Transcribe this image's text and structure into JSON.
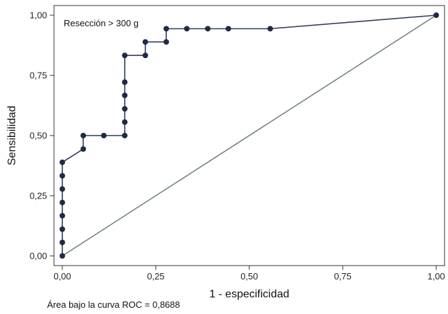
{
  "chart_data": {
    "type": "line",
    "xlabel": "1 - especificidad",
    "ylabel": "Sensibilidad",
    "annotation": "Resección > 300 g",
    "footer": "Área bajo la curva ROC = 0,8688",
    "xlim": [
      0,
      1
    ],
    "ylim": [
      0,
      1
    ],
    "x_ticks": [
      "0,00",
      "0,25",
      "0,50",
      "0,75",
      "1,00"
    ],
    "y_ticks": [
      "0,00",
      "0,25",
      "0,50",
      "0,75",
      "1,00"
    ],
    "grid": false,
    "colors": {
      "roc": "#2e3a59",
      "reference": "#6b7f79",
      "marker": "#1f2b45"
    },
    "series": [
      {
        "values_x": [
          0,
          0,
          0,
          0,
          0,
          0,
          0,
          0,
          0.056,
          0.056,
          0.111,
          0.167,
          0.167,
          0.167,
          0.167,
          0.167,
          0.167,
          0.222,
          0.222,
          0.278,
          0.278,
          0.333,
          0.389,
          0.444,
          0.556,
          1.0
        ],
        "values_y": [
          0,
          0.056,
          0.111,
          0.167,
          0.222,
          0.278,
          0.333,
          0.389,
          0.444,
          0.5,
          0.5,
          0.5,
          0.556,
          0.611,
          0.667,
          0.722,
          0.833,
          0.833,
          0.889,
          0.889,
          0.944,
          0.944,
          0.944,
          0.944,
          0.944,
          1.0
        ]
      },
      {
        "values_x": [
          0,
          1
        ],
        "values_y": [
          0,
          1
        ]
      }
    ]
  }
}
